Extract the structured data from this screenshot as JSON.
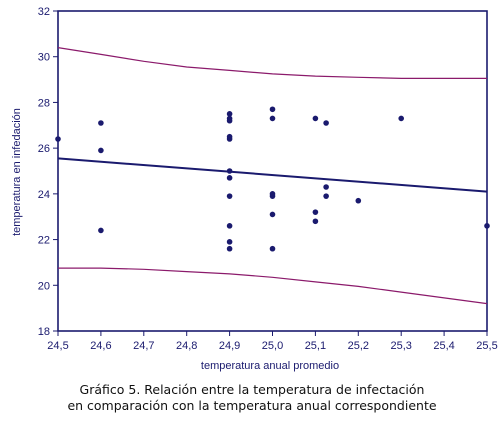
{
  "chart_data": {
    "type": "scatter",
    "xlabel": "temperatura anual promedio",
    "ylabel": "temperatura en infedación",
    "xlim": [
      24.5,
      25.5
    ],
    "ylim": [
      18,
      32
    ],
    "x_ticks": [
      "24,5",
      "24,6",
      "24,7",
      "24,8",
      "24,9",
      "25,0",
      "25,1",
      "25,2",
      "25,3",
      "25,4",
      "25,5"
    ],
    "y_ticks": [
      "18",
      "20",
      "22",
      "24",
      "26",
      "28",
      "30",
      "32"
    ],
    "points": [
      {
        "x": 24.5,
        "y": 26.4
      },
      {
        "x": 24.6,
        "y": 27.1
      },
      {
        "x": 24.6,
        "y": 25.9
      },
      {
        "x": 24.6,
        "y": 22.4
      },
      {
        "x": 24.9,
        "y": 27.5
      },
      {
        "x": 24.9,
        "y": 27.3
      },
      {
        "x": 24.9,
        "y": 27.2
      },
      {
        "x": 24.9,
        "y": 26.5
      },
      {
        "x": 24.9,
        "y": 26.4
      },
      {
        "x": 24.9,
        "y": 25.0
      },
      {
        "x": 24.9,
        "y": 24.7
      },
      {
        "x": 24.9,
        "y": 23.9
      },
      {
        "x": 24.9,
        "y": 22.6
      },
      {
        "x": 24.9,
        "y": 21.9
      },
      {
        "x": 24.9,
        "y": 21.6
      },
      {
        "x": 25.0,
        "y": 27.7
      },
      {
        "x": 25.0,
        "y": 27.3
      },
      {
        "x": 25.0,
        "y": 24.0
      },
      {
        "x": 25.0,
        "y": 23.9
      },
      {
        "x": 25.0,
        "y": 23.1
      },
      {
        "x": 25.0,
        "y": 21.6
      },
      {
        "x": 25.1,
        "y": 27.3
      },
      {
        "x": 25.1,
        "y": 23.2
      },
      {
        "x": 25.1,
        "y": 22.8
      },
      {
        "x": 25.125,
        "y": 27.1
      },
      {
        "x": 25.125,
        "y": 24.3
      },
      {
        "x": 25.125,
        "y": 23.9
      },
      {
        "x": 25.2,
        "y": 23.7
      },
      {
        "x": 25.3,
        "y": 27.3
      },
      {
        "x": 25.5,
        "y": 22.6
      }
    ],
    "fit_line": {
      "x": [
        24.5,
        25.5
      ],
      "y": [
        25.55,
        24.1
      ]
    },
    "upper_band": {
      "x": [
        24.5,
        24.6,
        24.7,
        24.8,
        24.9,
        25.0,
        25.1,
        25.2,
        25.3,
        25.4,
        25.5
      ],
      "y": [
        30.4,
        30.1,
        29.8,
        29.55,
        29.4,
        29.25,
        29.15,
        29.1,
        29.05,
        29.05,
        29.05
      ]
    },
    "lower_band": {
      "x": [
        24.5,
        24.6,
        24.7,
        24.8,
        24.9,
        25.0,
        25.1,
        25.2,
        25.3,
        25.4,
        25.5
      ],
      "y": [
        20.75,
        20.75,
        20.7,
        20.6,
        20.5,
        20.35,
        20.15,
        19.95,
        19.7,
        19.45,
        19.2
      ]
    },
    "grid": false,
    "colors": {
      "points": "#1a1a6e",
      "fit_line": "#1a1a6e",
      "bands": "#8b1a6b",
      "axes": "#1a1a6e"
    }
  },
  "caption": {
    "line1": "Gráfico 5. Relación entre la temperatura de infectación",
    "line2": "en comparación con la temperatura anual correspondiente"
  }
}
